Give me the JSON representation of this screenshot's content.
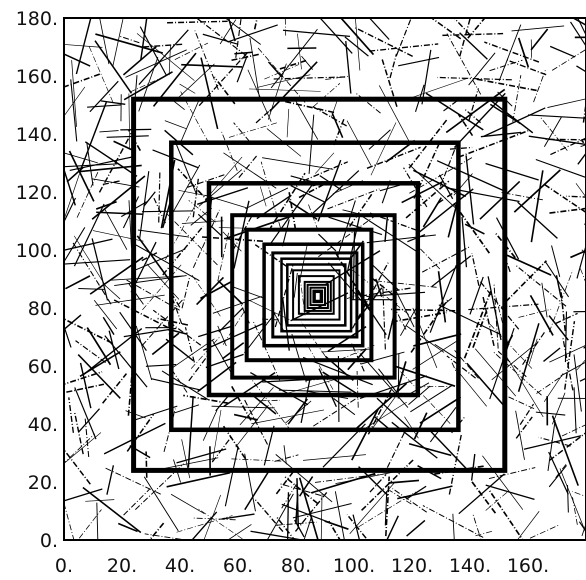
{
  "figure": {
    "type": "line-segments-with-nested-squares",
    "x_range": [
      0,
      180
    ],
    "y_range": [
      0,
      180
    ],
    "x_ticks": [
      {
        "value": 0,
        "label": "0."
      },
      {
        "value": 20,
        "label": "20."
      },
      {
        "value": 40,
        "label": "40."
      },
      {
        "value": 60,
        "label": "60."
      },
      {
        "value": 80,
        "label": "80."
      },
      {
        "value": 100,
        "label": "100."
      },
      {
        "value": 120,
        "label": "120."
      },
      {
        "value": 140,
        "label": "140."
      },
      {
        "value": 160,
        "label": "160."
      }
    ],
    "y_ticks": [
      {
        "value": 0,
        "label": "0."
      },
      {
        "value": 20,
        "label": "20."
      },
      {
        "value": 40,
        "label": "40."
      },
      {
        "value": 60,
        "label": "60."
      },
      {
        "value": 80,
        "label": "80."
      },
      {
        "value": 100,
        "label": "100."
      },
      {
        "value": 120,
        "label": "120."
      },
      {
        "value": 140,
        "label": "140."
      },
      {
        "value": 160,
        "label": "160."
      },
      {
        "value": 180,
        "label": "180."
      }
    ],
    "line_color": "#000000",
    "background_color": "#ffffff",
    "random_segments": {
      "description_count": 700,
      "length_range": [
        6,
        26
      ],
      "seed": 20240611
    },
    "nested_squares": [
      {
        "x0": 24,
        "y0": 24,
        "x1": 152,
        "y1": 152,
        "stroke": 5
      },
      {
        "x0": 37,
        "y0": 38,
        "x1": 136,
        "y1": 137,
        "stroke": 4.5
      },
      {
        "x0": 50,
        "y0": 50,
        "x1": 122,
        "y1": 123,
        "stroke": 4.5
      },
      {
        "x0": 58,
        "y0": 56,
        "x1": 114,
        "y1": 112,
        "stroke": 4
      },
      {
        "x0": 63,
        "y0": 62,
        "x1": 106,
        "y1": 107,
        "stroke": 4
      },
      {
        "x0": 69,
        "y0": 67,
        "x1": 103,
        "y1": 102,
        "stroke": 3.5
      },
      {
        "x0": 72,
        "y0": 70,
        "x1": 101,
        "y1": 99,
        "stroke": 3
      },
      {
        "x0": 75,
        "y0": 72,
        "x1": 99,
        "y1": 97,
        "stroke": 2.5
      },
      {
        "x0": 77,
        "y0": 74,
        "x1": 97,
        "y1": 95,
        "stroke": 2.5
      },
      {
        "x0": 79,
        "y0": 76,
        "x1": 95,
        "y1": 93,
        "stroke": 2
      },
      {
        "x0": 81,
        "y0": 78,
        "x1": 93,
        "y1": 91,
        "stroke": 2
      },
      {
        "x0": 83,
        "y0": 79,
        "x1": 92,
        "y1": 89,
        "stroke": 2
      },
      {
        "x0": 84,
        "y0": 80,
        "x1": 91,
        "y1": 88,
        "stroke": 2
      },
      {
        "x0": 85,
        "y0": 81,
        "x1": 90,
        "y1": 87,
        "stroke": 2
      },
      {
        "x0": 86,
        "y0": 82,
        "x1": 89,
        "y1": 86,
        "stroke": 2
      },
      {
        "x0": 86.5,
        "y0": 82.5,
        "x1": 88.5,
        "y1": 85.5,
        "stroke": 2
      }
    ]
  }
}
